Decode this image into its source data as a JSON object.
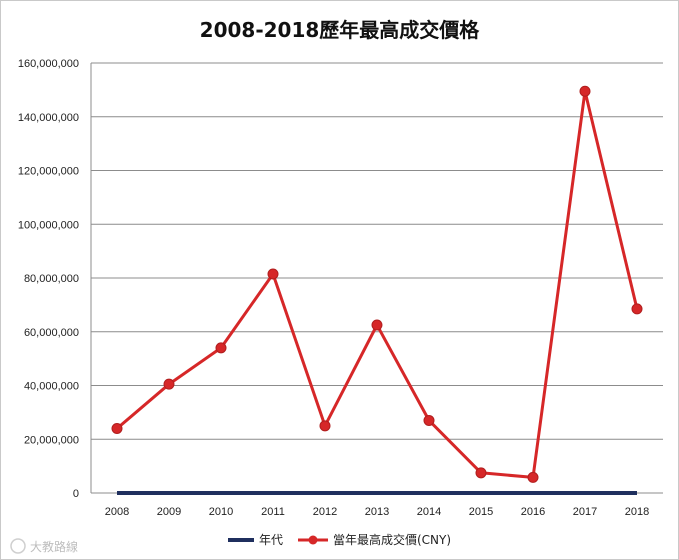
{
  "chart_data": {
    "type": "line",
    "title": "2008-2018歷年最高成交價格",
    "xlabel": "",
    "ylabel": "",
    "categories": [
      "2008",
      "2009",
      "2010",
      "2011",
      "2012",
      "2013",
      "2014",
      "2015",
      "2016",
      "2017",
      "2018"
    ],
    "ylim": [
      0,
      160000000
    ],
    "yticks": [
      0,
      20000000,
      40000000,
      60000000,
      80000000,
      100000000,
      120000000,
      140000000,
      160000000
    ],
    "ytick_labels": [
      "0",
      "20,000,000",
      "40,000,000",
      "60,000,000",
      "80,000,000",
      "100,000,000",
      "120,000,000",
      "140,000,000",
      "160,000,000"
    ],
    "grid": true,
    "legend": "bottom",
    "series": [
      {
        "name": "年代",
        "color": "#1f2f5e",
        "marker": false,
        "values": [
          2008,
          2009,
          2010,
          2011,
          2012,
          2013,
          2014,
          2015,
          2016,
          2017,
          2018
        ]
      },
      {
        "name": "當年最高成交價(CNY)",
        "color": "#d62728",
        "marker": true,
        "values": [
          24000000,
          40500000,
          54000000,
          81500000,
          25000000,
          62500000,
          27000000,
          7500000,
          5800000,
          149500000,
          68500000
        ]
      }
    ]
  },
  "watermark": "大教路線"
}
